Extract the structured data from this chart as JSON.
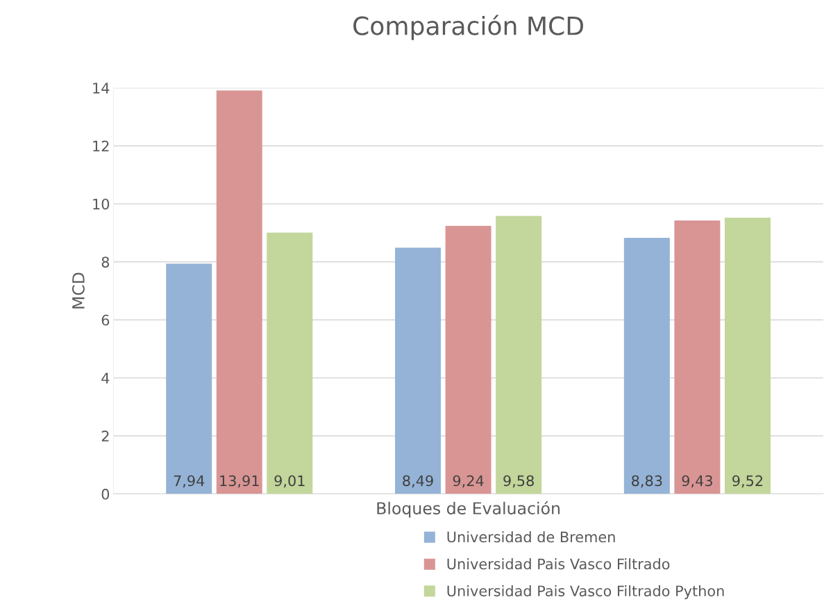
{
  "chart_data": {
    "type": "bar",
    "title": "Comparación MCD",
    "xlabel": "Bloques de Evaluación",
    "ylabel": "MCD",
    "categories": [
      null,
      null,
      null
    ],
    "series": [
      {
        "name": "Universidad de Bremen",
        "color": "#95b3d7",
        "values": [
          7.94,
          8.49,
          8.83
        ],
        "value_labels": [
          "7,94",
          "8,49",
          "8,83"
        ]
      },
      {
        "name": "Universidad Pais Vasco Filtrado",
        "color": "#d99594",
        "values": [
          13.91,
          9.24,
          9.43
        ],
        "value_labels": [
          "13,91",
          "9,24",
          "9,43"
        ]
      },
      {
        "name": "Universidad Pais Vasco Filtrado Python",
        "color": "#c3d69b",
        "values": [
          9.01,
          9.58,
          9.52
        ],
        "value_labels": [
          "9,01",
          "9,58",
          "9,52"
        ]
      }
    ],
    "ylim": [
      0,
      14
    ],
    "yticks": [
      0,
      2,
      4,
      6,
      8,
      10,
      12,
      14
    ],
    "grid": "y",
    "legend": "bottom"
  }
}
